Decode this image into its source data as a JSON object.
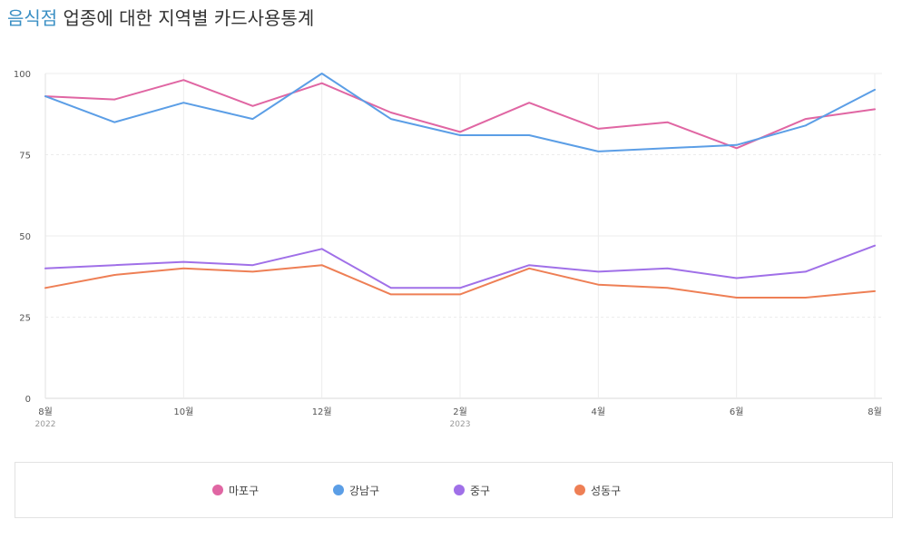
{
  "header": {
    "title_highlight": "음식점",
    "title_rest": " 업종에 대한 지역별 카드사용통계"
  },
  "chart_data": {
    "type": "line",
    "ylim": [
      0,
      100
    ],
    "yticks": [
      0,
      25,
      50,
      75,
      100
    ],
    "x_labels": [
      {
        "index": 0,
        "label": "8월",
        "sub": "2022"
      },
      {
        "index": 2,
        "label": "10월",
        "sub": ""
      },
      {
        "index": 4,
        "label": "12월",
        "sub": ""
      },
      {
        "index": 6,
        "label": "2월",
        "sub": "2023"
      },
      {
        "index": 8,
        "label": "4월",
        "sub": ""
      },
      {
        "index": 10,
        "label": "6월",
        "sub": ""
      },
      {
        "index": 12,
        "label": "8월",
        "sub": ""
      }
    ],
    "x_count": 13,
    "series": [
      {
        "name": "마포구",
        "color": "#e066a3",
        "values": [
          93,
          92,
          98,
          90,
          97,
          88,
          82,
          91,
          83,
          85,
          77,
          86,
          89
        ]
      },
      {
        "name": "강남구",
        "color": "#5b9ee6",
        "values": [
          93,
          85,
          91,
          86,
          100,
          86,
          81,
          81,
          76,
          77,
          78,
          84,
          95
        ]
      },
      {
        "name": "중구",
        "color": "#a070e8",
        "values": [
          40,
          41,
          42,
          41,
          46,
          34,
          34,
          41,
          39,
          40,
          37,
          39,
          47
        ]
      },
      {
        "name": "성동구",
        "color": "#ee7f55",
        "values": [
          34,
          38,
          40,
          39,
          41,
          32,
          32,
          40,
          35,
          34,
          31,
          31,
          33
        ]
      }
    ]
  }
}
